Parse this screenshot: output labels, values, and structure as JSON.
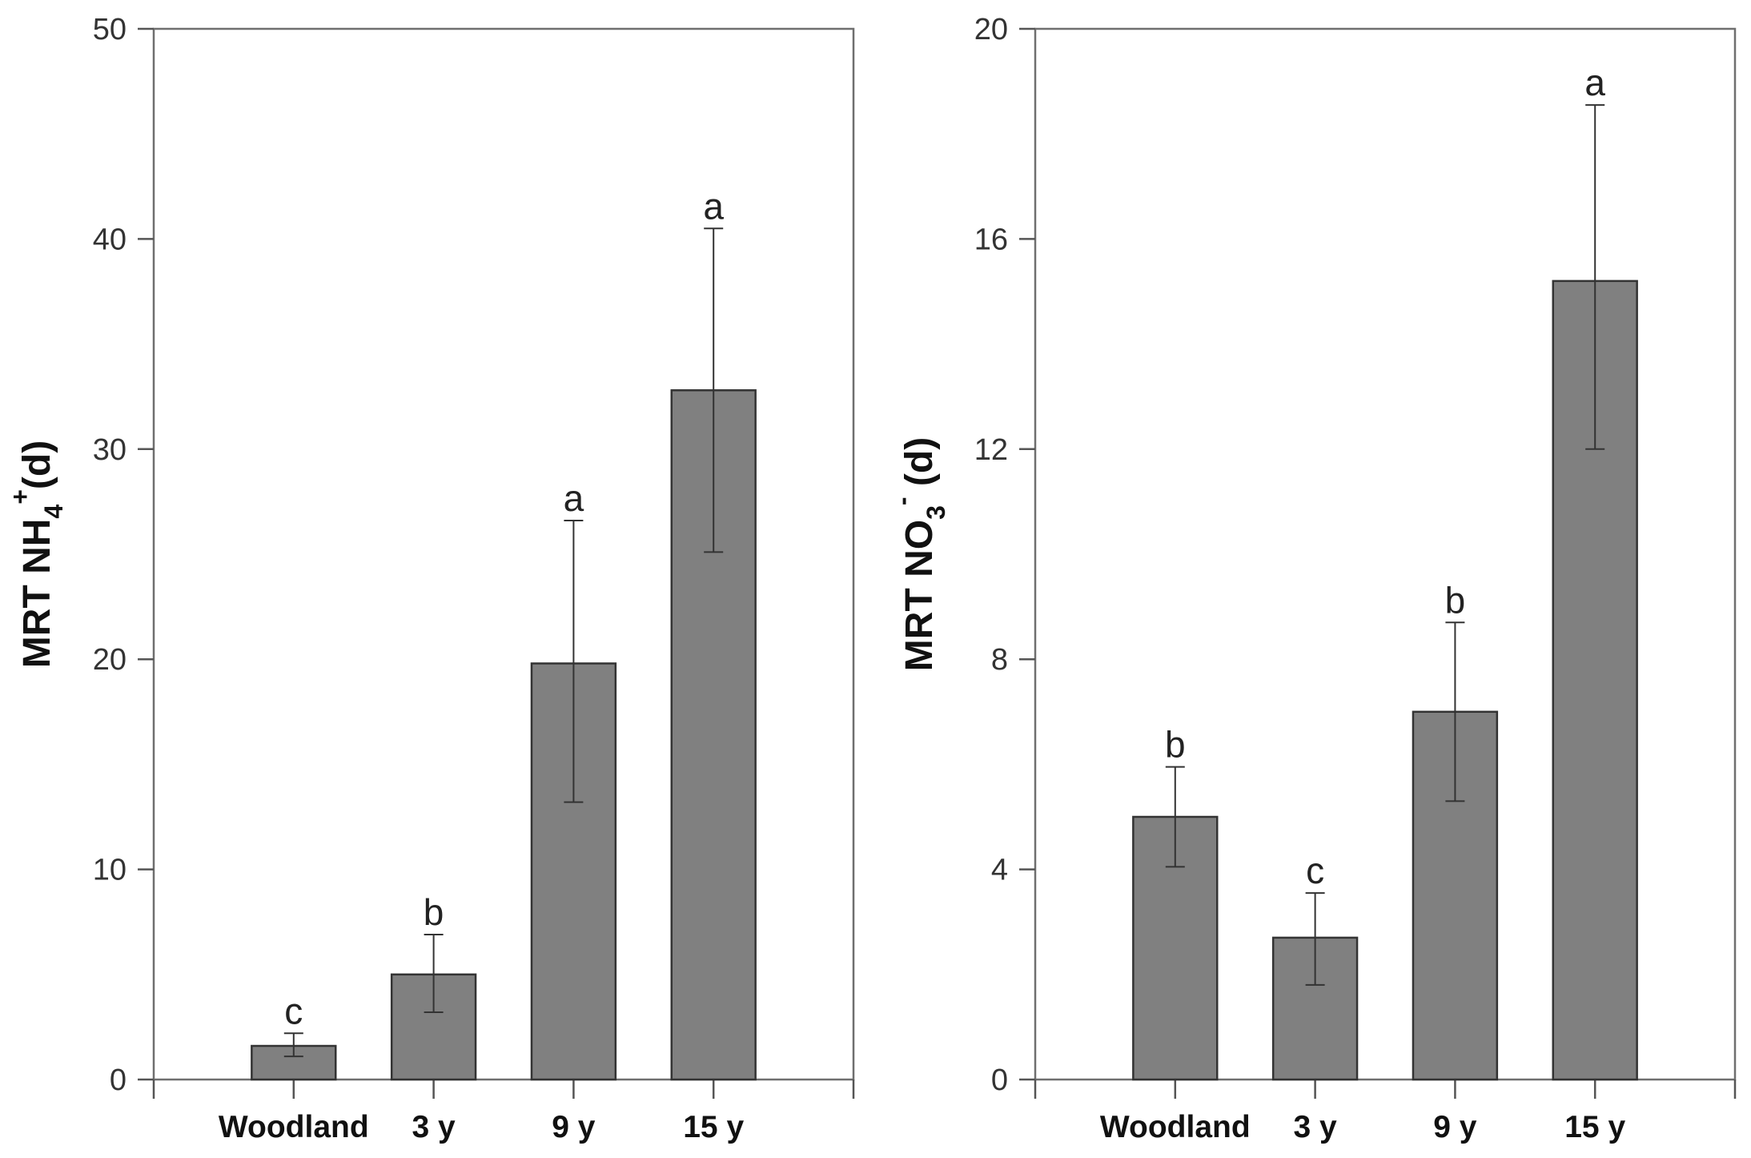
{
  "chart_data": [
    {
      "type": "bar",
      "ylabel": {
        "prefix": "MRT NH",
        "sub": "4",
        "sup": "+",
        "suffix": "(d)"
      },
      "categories": [
        "Woodland",
        "3 y",
        "9 y",
        "15 y"
      ],
      "values": [
        1.6,
        5.0,
        19.8,
        32.8
      ],
      "error_lower": [
        1.1,
        3.2,
        13.2,
        25.1
      ],
      "error_upper": [
        2.2,
        6.9,
        26.6,
        40.5
      ],
      "significance": [
        "c",
        "b",
        "a",
        "a"
      ],
      "ylim": [
        0,
        50
      ],
      "yticks": [
        0,
        10,
        20,
        30,
        40,
        50
      ],
      "ytick_labels": [
        "0",
        "10",
        "20",
        "30",
        "40",
        "50"
      ]
    },
    {
      "type": "bar",
      "ylabel": {
        "prefix": "MRT NO",
        "sub": "3",
        "sup": "-",
        "suffix": " (d)"
      },
      "categories": [
        "Woodland",
        "3 y",
        "9 y",
        "15 y"
      ],
      "values": [
        5.0,
        2.7,
        7.0,
        15.2
      ],
      "error_lower": [
        4.05,
        1.8,
        5.3,
        12.0
      ],
      "error_upper": [
        5.95,
        3.55,
        8.7,
        18.55
      ],
      "significance": [
        "b",
        "c",
        "b",
        "a"
      ],
      "ylim": [
        0,
        20
      ],
      "yticks": [
        0,
        4,
        8,
        12,
        16,
        20
      ],
      "ytick_labels": [
        "0",
        "4",
        "8",
        "12",
        "16",
        "20"
      ]
    }
  ]
}
